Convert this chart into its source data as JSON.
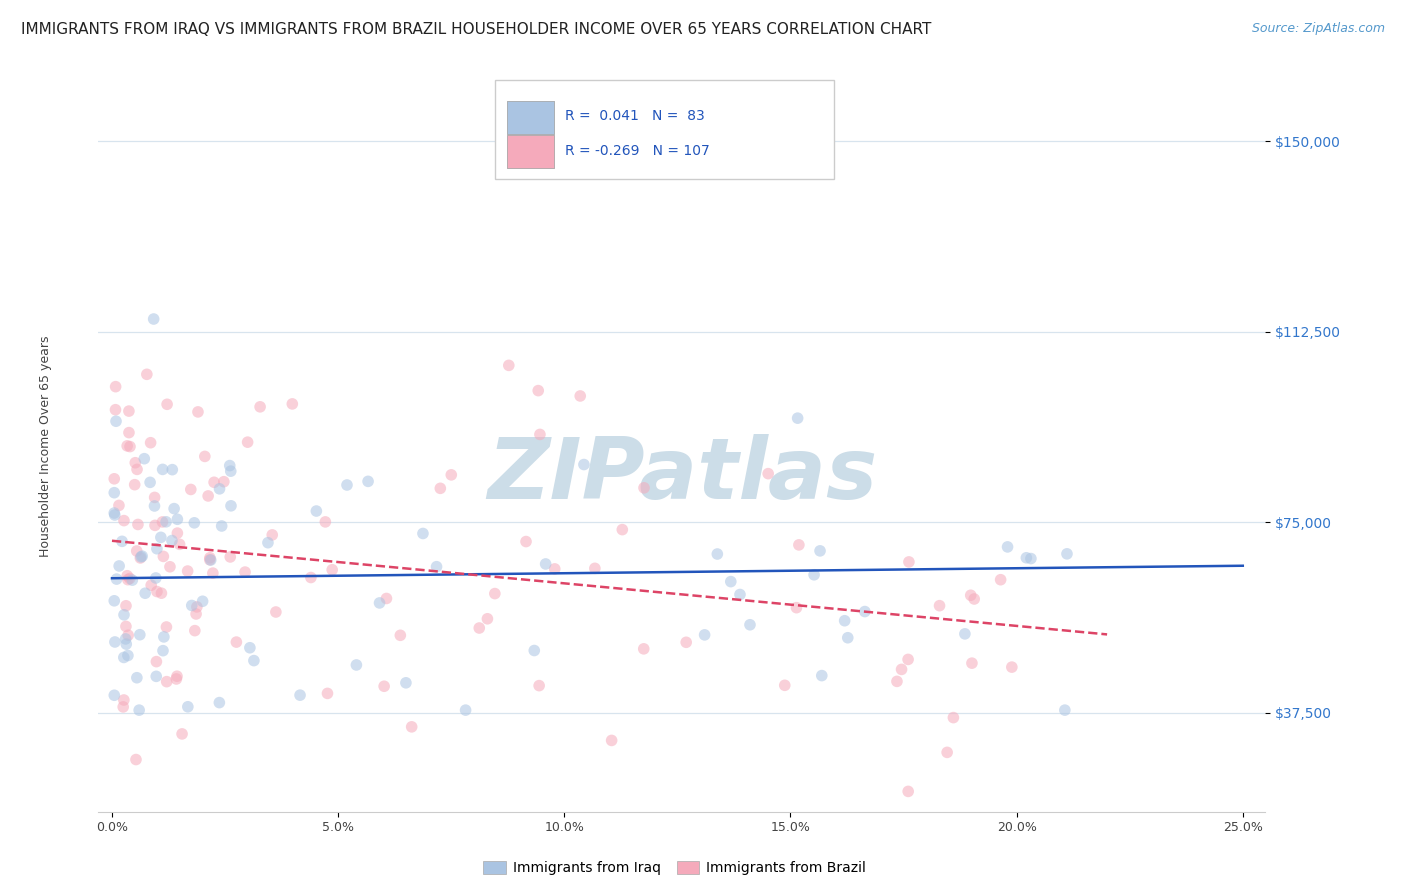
{
  "title": "IMMIGRANTS FROM IRAQ VS IMMIGRANTS FROM BRAZIL HOUSEHOLDER INCOME OVER 65 YEARS CORRELATION CHART",
  "source": "Source: ZipAtlas.com",
  "ylabel": "Householder Income Over 65 years",
  "xlabel_ticks": [
    "0.0%",
    "5.0%",
    "10.0%",
    "15.0%",
    "20.0%",
    "25.0%"
  ],
  "xlabel_vals": [
    0.0,
    5.0,
    10.0,
    15.0,
    20.0,
    25.0
  ],
  "ytick_labels": [
    "$37,500",
    "$75,000",
    "$112,500",
    "$150,000"
  ],
  "ytick_vals": [
    37500,
    75000,
    112500,
    150000
  ],
  "ylim": [
    18000,
    162000
  ],
  "xlim": [
    -0.3,
    25.5
  ],
  "iraq_R": 0.041,
  "iraq_N": 83,
  "brazil_R": -0.269,
  "brazil_N": 107,
  "iraq_color": "#aac4e2",
  "iraq_line_color": "#2255bb",
  "brazil_color": "#f5aabb",
  "brazil_line_color": "#dd4466",
  "legend_iraq_label": "Immigrants from Iraq",
  "legend_brazil_label": "Immigrants from Brazil",
  "legend_R_color": "#333333",
  "legend_N_color": "#2255bb",
  "background_color": "#ffffff",
  "grid_color": "#d8e4ee",
  "watermark": "ZIPatlas",
  "watermark_color": "#ccdde8",
  "title_fontsize": 11,
  "source_fontsize": 9,
  "axis_label_fontsize": 9,
  "tick_fontsize": 9,
  "legend_fontsize": 10,
  "marker_size": 70,
  "marker_alpha": 0.55,
  "seed": 12
}
